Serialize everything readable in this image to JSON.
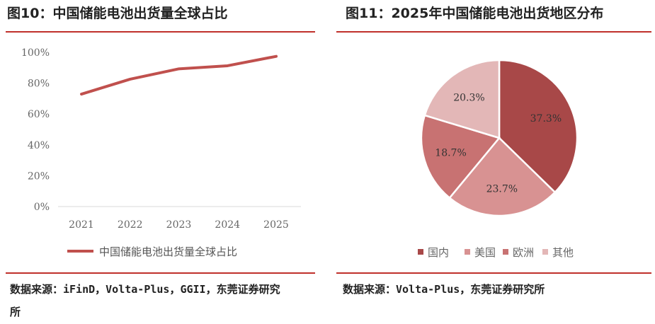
{
  "left": {
    "title": "图10：中国储能电池出货量全球占比",
    "source_line1": "数据来源：iFinD，Volta-Plus，GGII，东莞证券研究",
    "source_line2": "所"
  },
  "right": {
    "title": "图11：2025年中国储能电池出货地区分布",
    "source": "数据来源：Volta-Plus，东莞证券研究所"
  },
  "chart_data": [
    {
      "type": "line",
      "categories": [
        "2021",
        "2022",
        "2023",
        "2024",
        "2025"
      ],
      "series": [
        {
          "name": "中国储能电池出货量全球占比",
          "values": [
            72.9,
            82.6,
            89.3,
            91.3,
            97.4
          ],
          "color": "#c0504d"
        }
      ],
      "yticks": [
        "0%",
        "20%",
        "40%",
        "60%",
        "80%",
        "100%"
      ],
      "ylim": [
        0,
        100
      ],
      "grid": false,
      "legend": "bottom"
    },
    {
      "type": "pie",
      "labels": [
        "国内",
        "美国",
        "欧洲",
        "其他"
      ],
      "values": [
        37.3,
        23.7,
        18.7,
        20.3
      ],
      "data_labels": [
        "37.3%",
        "23.7%",
        "18.7%",
        "20.3%"
      ],
      "colors": [
        "#a84848",
        "#d89292",
        "#c87272",
        "#e3b7b7"
      ],
      "legend": "bottom"
    }
  ]
}
